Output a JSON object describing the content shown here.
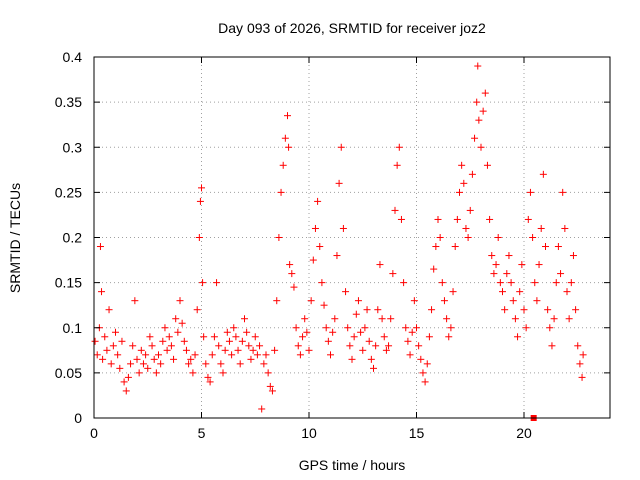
{
  "chart_data": {
    "type": "scatter",
    "title": "Day 093 of 2026, SRMTID for receiver joz2",
    "xlabel": "GPS time / hours",
    "ylabel": "SRMTID / TECUs",
    "xlim": [
      0,
      24
    ],
    "ylim": [
      0,
      0.4
    ],
    "xticks": [
      0,
      5,
      10,
      15,
      20
    ],
    "yticks": [
      0,
      0.05,
      0.1,
      0.15,
      0.2,
      0.25,
      0.3,
      0.35,
      0.4
    ],
    "xtick_labels": [
      "0",
      "5",
      "10",
      "15",
      "20"
    ],
    "ytick_labels": [
      "0",
      "0.05",
      "0.1",
      "0.15",
      "0.2",
      "0.25",
      "0.3",
      "0.35",
      "0.4"
    ],
    "grid": true,
    "marker": "plus",
    "series": [
      {
        "name": "SRMTID joz2",
        "color": "#ff0000",
        "points": [
          [
            0.05,
            0.085
          ],
          [
            0.15,
            0.07
          ],
          [
            0.25,
            0.1
          ],
          [
            0.3,
            0.19
          ],
          [
            0.35,
            0.14
          ],
          [
            0.4,
            0.065
          ],
          [
            0.5,
            0.09
          ],
          [
            0.6,
            0.075
          ],
          [
            0.7,
            0.12
          ],
          [
            0.8,
            0.06
          ],
          [
            0.9,
            0.08
          ],
          [
            1.0,
            0.095
          ],
          [
            1.1,
            0.07
          ],
          [
            1.2,
            0.055
          ],
          [
            1.3,
            0.085
          ],
          [
            1.4,
            0.04
          ],
          [
            1.5,
            0.03
          ],
          [
            1.6,
            0.045
          ],
          [
            1.7,
            0.06
          ],
          [
            1.8,
            0.08
          ],
          [
            1.9,
            0.13
          ],
          [
            2.0,
            0.065
          ],
          [
            2.1,
            0.05
          ],
          [
            2.2,
            0.075
          ],
          [
            2.3,
            0.06
          ],
          [
            2.4,
            0.07
          ],
          [
            2.5,
            0.055
          ],
          [
            2.6,
            0.09
          ],
          [
            2.7,
            0.08
          ],
          [
            2.8,
            0.065
          ],
          [
            2.9,
            0.05
          ],
          [
            3.0,
            0.07
          ],
          [
            3.1,
            0.06
          ],
          [
            3.2,
            0.085
          ],
          [
            3.3,
            0.1
          ],
          [
            3.4,
            0.075
          ],
          [
            3.5,
            0.09
          ],
          [
            3.6,
            0.08
          ],
          [
            3.7,
            0.065
          ],
          [
            3.8,
            0.11
          ],
          [
            3.9,
            0.095
          ],
          [
            4.0,
            0.13
          ],
          [
            4.1,
            0.105
          ],
          [
            4.2,
            0.085
          ],
          [
            4.3,
            0.075
          ],
          [
            4.4,
            0.06
          ],
          [
            4.5,
            0.065
          ],
          [
            4.6,
            0.05
          ],
          [
            4.7,
            0.07
          ],
          [
            4.8,
            0.12
          ],
          [
            4.9,
            0.2
          ],
          [
            4.95,
            0.24
          ],
          [
            5.0,
            0.255
          ],
          [
            5.05,
            0.15
          ],
          [
            5.1,
            0.09
          ],
          [
            5.2,
            0.06
          ],
          [
            5.3,
            0.045
          ],
          [
            5.4,
            0.04
          ],
          [
            5.5,
            0.07
          ],
          [
            5.6,
            0.09
          ],
          [
            5.7,
            0.15
          ],
          [
            5.8,
            0.08
          ],
          [
            5.9,
            0.06
          ],
          [
            6.0,
            0.05
          ],
          [
            6.1,
            0.075
          ],
          [
            6.2,
            0.095
          ],
          [
            6.3,
            0.085
          ],
          [
            6.4,
            0.07
          ],
          [
            6.5,
            0.1
          ],
          [
            6.6,
            0.09
          ],
          [
            6.7,
            0.075
          ],
          [
            6.8,
            0.06
          ],
          [
            6.9,
            0.085
          ],
          [
            7.0,
            0.11
          ],
          [
            7.1,
            0.095
          ],
          [
            7.2,
            0.08
          ],
          [
            7.3,
            0.065
          ],
          [
            7.4,
            0.075
          ],
          [
            7.5,
            0.09
          ],
          [
            7.6,
            0.07
          ],
          [
            7.7,
            0.08
          ],
          [
            7.8,
            0.01
          ],
          [
            7.9,
            0.06
          ],
          [
            8.0,
            0.07
          ],
          [
            8.1,
            0.05
          ],
          [
            8.2,
            0.035
          ],
          [
            8.3,
            0.03
          ],
          [
            8.4,
            0.075
          ],
          [
            8.5,
            0.13
          ],
          [
            8.6,
            0.2
          ],
          [
            8.7,
            0.25
          ],
          [
            8.8,
            0.28
          ],
          [
            8.9,
            0.31
          ],
          [
            9.0,
            0.335
          ],
          [
            9.05,
            0.3
          ],
          [
            9.1,
            0.17
          ],
          [
            9.2,
            0.16
          ],
          [
            9.3,
            0.145
          ],
          [
            9.4,
            0.1
          ],
          [
            9.5,
            0.08
          ],
          [
            9.6,
            0.07
          ],
          [
            9.7,
            0.09
          ],
          [
            9.8,
            0.11
          ],
          [
            9.9,
            0.095
          ],
          [
            10.0,
            0.075
          ],
          [
            10.1,
            0.13
          ],
          [
            10.2,
            0.175
          ],
          [
            10.3,
            0.21
          ],
          [
            10.4,
            0.24
          ],
          [
            10.5,
            0.19
          ],
          [
            10.6,
            0.15
          ],
          [
            10.7,
            0.125
          ],
          [
            10.8,
            0.1
          ],
          [
            10.9,
            0.085
          ],
          [
            11.0,
            0.07
          ],
          [
            11.1,
            0.095
          ],
          [
            11.2,
            0.11
          ],
          [
            11.3,
            0.18
          ],
          [
            11.4,
            0.26
          ],
          [
            11.5,
            0.3
          ],
          [
            11.6,
            0.21
          ],
          [
            11.7,
            0.14
          ],
          [
            11.8,
            0.1
          ],
          [
            11.9,
            0.08
          ],
          [
            12.0,
            0.065
          ],
          [
            12.1,
            0.09
          ],
          [
            12.2,
            0.115
          ],
          [
            12.3,
            0.13
          ],
          [
            12.4,
            0.095
          ],
          [
            12.5,
            0.075
          ],
          [
            12.6,
            0.1
          ],
          [
            12.7,
            0.12
          ],
          [
            12.8,
            0.085
          ],
          [
            12.9,
            0.065
          ],
          [
            13.0,
            0.055
          ],
          [
            13.1,
            0.08
          ],
          [
            13.2,
            0.12
          ],
          [
            13.3,
            0.17
          ],
          [
            13.4,
            0.11
          ],
          [
            13.5,
            0.09
          ],
          [
            13.6,
            0.075
          ],
          [
            13.7,
            0.08
          ],
          [
            13.8,
            0.11
          ],
          [
            13.9,
            0.16
          ],
          [
            14.0,
            0.23
          ],
          [
            14.1,
            0.28
          ],
          [
            14.2,
            0.3
          ],
          [
            14.3,
            0.22
          ],
          [
            14.4,
            0.15
          ],
          [
            14.5,
            0.1
          ],
          [
            14.6,
            0.085
          ],
          [
            14.7,
            0.07
          ],
          [
            14.8,
            0.095
          ],
          [
            14.9,
            0.13
          ],
          [
            15.0,
            0.1
          ],
          [
            15.1,
            0.08
          ],
          [
            15.2,
            0.065
          ],
          [
            15.3,
            0.05
          ],
          [
            15.4,
            0.04
          ],
          [
            15.5,
            0.06
          ],
          [
            15.6,
            0.09
          ],
          [
            15.7,
            0.12
          ],
          [
            15.8,
            0.165
          ],
          [
            15.9,
            0.19
          ],
          [
            16.0,
            0.22
          ],
          [
            16.1,
            0.2
          ],
          [
            16.2,
            0.15
          ],
          [
            16.3,
            0.13
          ],
          [
            16.4,
            0.11
          ],
          [
            16.5,
            0.09
          ],
          [
            16.6,
            0.1
          ],
          [
            16.7,
            0.14
          ],
          [
            16.8,
            0.19
          ],
          [
            16.9,
            0.22
          ],
          [
            17.0,
            0.25
          ],
          [
            17.1,
            0.28
          ],
          [
            17.2,
            0.26
          ],
          [
            17.3,
            0.21
          ],
          [
            17.4,
            0.2
          ],
          [
            17.5,
            0.23
          ],
          [
            17.6,
            0.27
          ],
          [
            17.7,
            0.31
          ],
          [
            17.8,
            0.35
          ],
          [
            17.85,
            0.39
          ],
          [
            17.9,
            0.33
          ],
          [
            18.0,
            0.3
          ],
          [
            18.1,
            0.34
          ],
          [
            18.2,
            0.36
          ],
          [
            18.3,
            0.28
          ],
          [
            18.4,
            0.22
          ],
          [
            18.5,
            0.18
          ],
          [
            18.6,
            0.16
          ],
          [
            18.7,
            0.17
          ],
          [
            18.8,
            0.2
          ],
          [
            18.9,
            0.15
          ],
          [
            19.0,
            0.14
          ],
          [
            19.1,
            0.12
          ],
          [
            19.2,
            0.16
          ],
          [
            19.3,
            0.18
          ],
          [
            19.4,
            0.15
          ],
          [
            19.5,
            0.13
          ],
          [
            19.6,
            0.11
          ],
          [
            19.7,
            0.09
          ],
          [
            19.8,
            0.14
          ],
          [
            19.9,
            0.17
          ],
          [
            20.0,
            0.12
          ],
          [
            20.1,
            0.1
          ],
          [
            20.2,
            0.22
          ],
          [
            20.3,
            0.25
          ],
          [
            20.4,
            0.2
          ],
          [
            20.5,
            0.15
          ],
          [
            20.6,
            0.13
          ],
          [
            20.7,
            0.17
          ],
          [
            20.8,
            0.21
          ],
          [
            20.9,
            0.27
          ],
          [
            21.0,
            0.19
          ],
          [
            21.1,
            0.12
          ],
          [
            21.2,
            0.1
          ],
          [
            21.3,
            0.08
          ],
          [
            21.4,
            0.11
          ],
          [
            21.5,
            0.15
          ],
          [
            21.6,
            0.19
          ],
          [
            21.7,
            0.16
          ],
          [
            21.8,
            0.25
          ],
          [
            21.9,
            0.21
          ],
          [
            22.0,
            0.14
          ],
          [
            22.1,
            0.11
          ],
          [
            22.2,
            0.15
          ],
          [
            22.3,
            0.18
          ],
          [
            22.4,
            0.12
          ],
          [
            22.5,
            0.08
          ],
          [
            22.6,
            0.06
          ],
          [
            22.7,
            0.045
          ],
          [
            22.75,
            0.07
          ]
        ]
      }
    ],
    "annotations": [
      {
        "type": "square-marker",
        "x": 20.45,
        "y": 0.0,
        "color": "#ff0000"
      }
    ]
  }
}
